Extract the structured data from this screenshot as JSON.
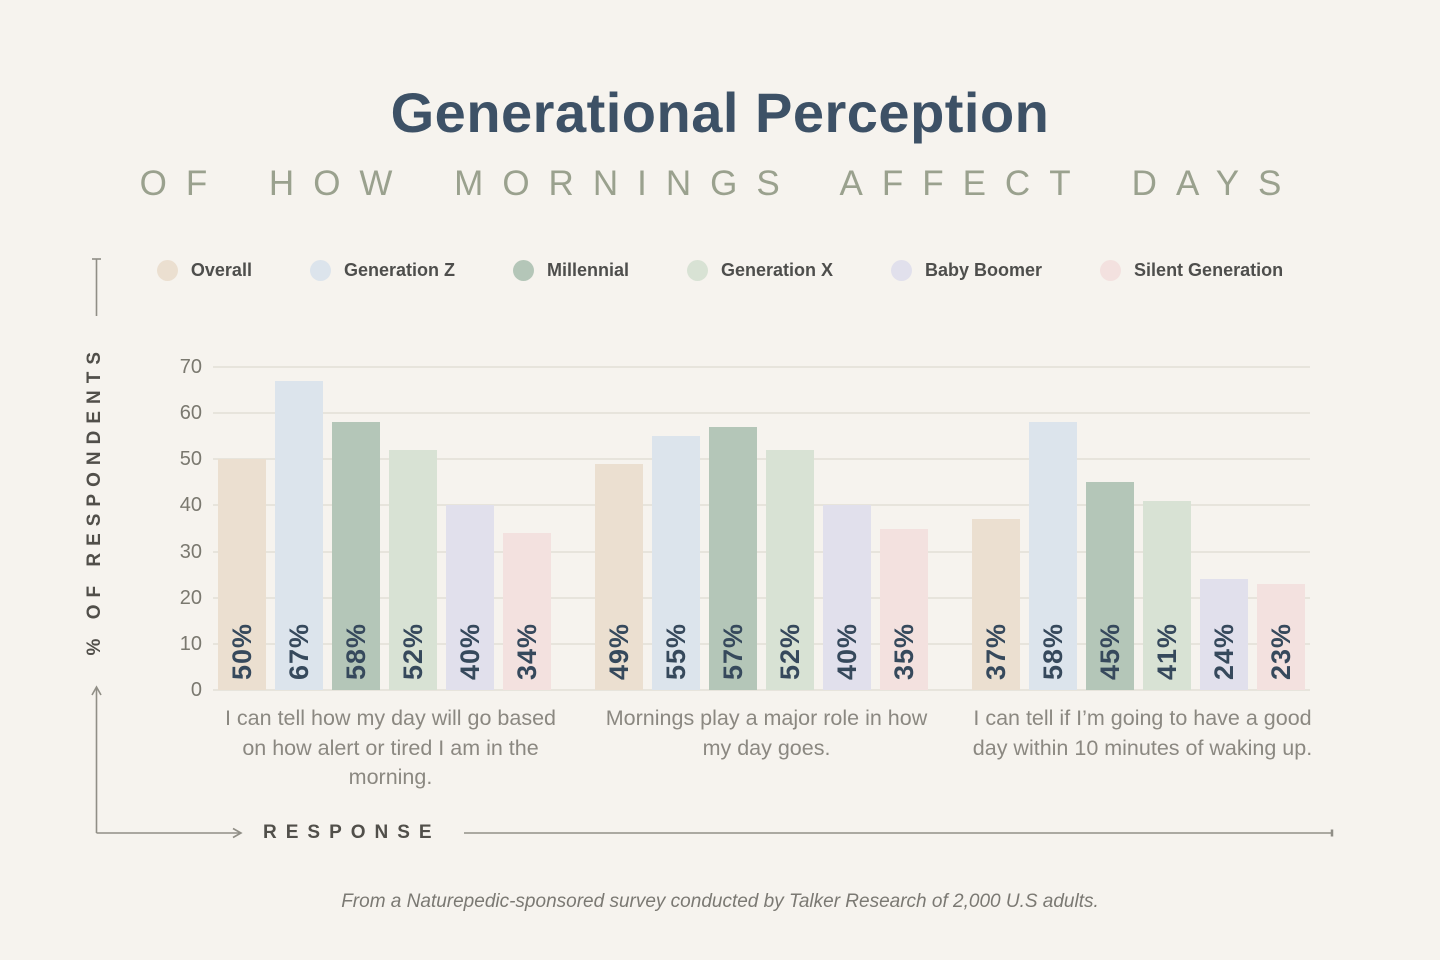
{
  "header": {
    "title": "Generational Perception",
    "subtitle": "OF HOW MORNINGS AFFECT DAYS"
  },
  "chart_data": {
    "type": "bar",
    "title": "Generational Perception of How Mornings Affect Days",
    "categories": [
      "I can tell how my day will go based on how alert or tired I am in the morning.",
      "Mornings play a major role in how my day goes.",
      "I can tell if I’m going to have a good day within 10 minutes of waking up."
    ],
    "series": [
      {
        "name": "Overall",
        "color": "#ebdfd0",
        "values": [
          50,
          49,
          37
        ]
      },
      {
        "name": "Generation Z",
        "color": "#dce4ec",
        "values": [
          67,
          55,
          58
        ]
      },
      {
        "name": "Millennial",
        "color": "#b4c6b8",
        "values": [
          58,
          57,
          45
        ]
      },
      {
        "name": "Generation X",
        "color": "#d8e2d4",
        "values": [
          52,
          52,
          41
        ]
      },
      {
        "name": "Baby Boomer",
        "color": "#e1e0ec",
        "values": [
          40,
          40,
          24
        ]
      },
      {
        "name": "Silent Generation",
        "color": "#f3e1df",
        "values": [
          34,
          35,
          23
        ]
      }
    ],
    "ylabel": "% OF RESPONDENTS",
    "xlabel": "RESPONSE",
    "ylim": [
      0,
      70
    ],
    "yticks": [
      0,
      10,
      20,
      30,
      40,
      50,
      60,
      70
    ],
    "value_suffix": "%",
    "grid": true,
    "legend_position": "top"
  },
  "footer": {
    "source": "From a Naturepedic-sponsored survey conducted by Talker Research of 2,000 U.S adults."
  },
  "colors": {
    "accent_title": "#3d5166",
    "accent_subtitle": "#9aa18e",
    "bar_value_label": "#36495c",
    "axis_line": "#908e86"
  }
}
